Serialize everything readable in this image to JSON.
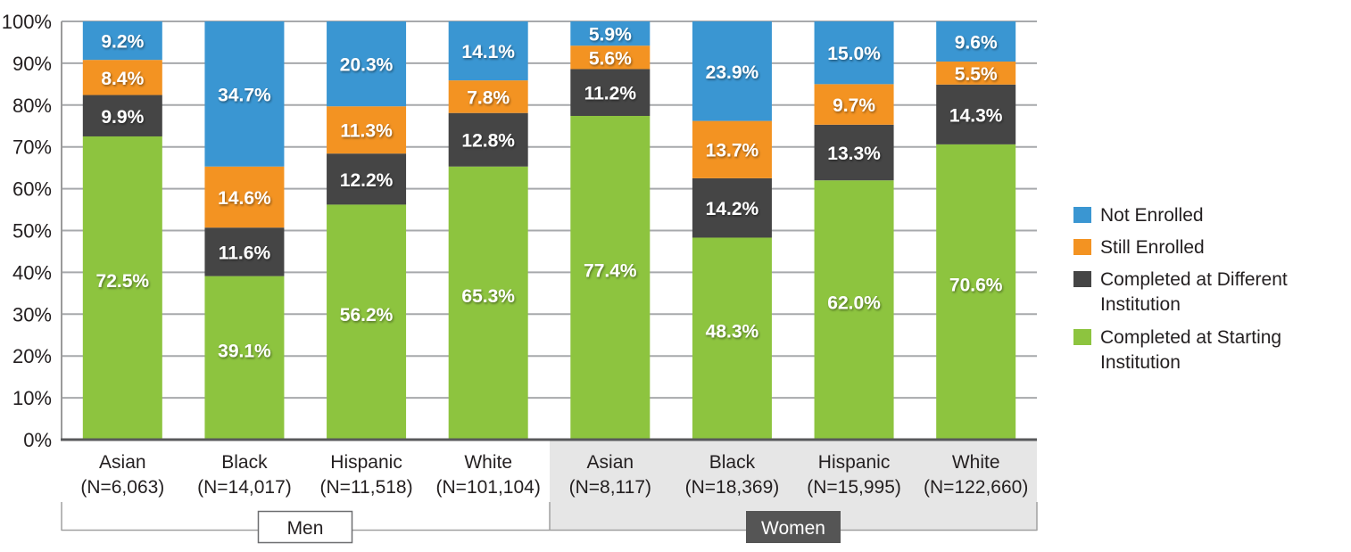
{
  "chart_data": {
    "type": "bar",
    "stacked": true,
    "title": "",
    "xlabel": "",
    "ylabel": "",
    "ylim": [
      0,
      100
    ],
    "y_ticks": [
      "0%",
      "10%",
      "20%",
      "30%",
      "40%",
      "50%",
      "60%",
      "70%",
      "80%",
      "90%",
      "100%"
    ],
    "grid": true,
    "legend_position": "right",
    "categories": [
      {
        "name": "Asian",
        "n": "(N=6,063)",
        "group": "Men"
      },
      {
        "name": "Black",
        "n": "(N=14,017)",
        "group": "Men"
      },
      {
        "name": "Hispanic",
        "n": "(N=11,518)",
        "group": "Men"
      },
      {
        "name": "White",
        "n": "(N=101,104)",
        "group": "Men"
      },
      {
        "name": "Asian",
        "n": "(N=8,117)",
        "group": "Women"
      },
      {
        "name": "Black",
        "n": "(N=18,369)",
        "group": "Women"
      },
      {
        "name": "Hispanic",
        "n": "(N=15,995)",
        "group": "Women"
      },
      {
        "name": "White",
        "n": "(N=122,660)",
        "group": "Women"
      }
    ],
    "groups": [
      "Men",
      "Women"
    ],
    "series": [
      {
        "name": "Completed at Starting Institution",
        "legend_lines": [
          "Completed at Starting",
          "Institution"
        ],
        "color": "#8dc43f",
        "values": [
          72.5,
          39.1,
          56.2,
          65.3,
          77.4,
          48.3,
          62.0,
          70.6
        ],
        "labels": [
          "72.5%",
          "39.1%",
          "56.2%",
          "65.3%",
          "77.4%",
          "48.3%",
          "62.0%",
          "70.6%"
        ]
      },
      {
        "name": "Completed at Different Institution",
        "legend_lines": [
          "Completed at Different",
          "Institution"
        ],
        "color": "#454545",
        "values": [
          9.9,
          11.6,
          12.2,
          12.8,
          11.2,
          14.2,
          13.3,
          14.3
        ],
        "labels": [
          "9.9%",
          "11.6%",
          "12.2%",
          "12.8%",
          "11.2%",
          "14.2%",
          "13.3%",
          "14.3%"
        ]
      },
      {
        "name": "Still Enrolled",
        "legend_lines": [
          "Still Enrolled"
        ],
        "color": "#f39322",
        "values": [
          8.4,
          14.6,
          11.3,
          7.8,
          5.6,
          13.7,
          9.7,
          5.5
        ],
        "labels": [
          "8.4%",
          "14.6%",
          "11.3%",
          "7.8%",
          "5.6%",
          "13.7%",
          "9.7%",
          "5.5%"
        ]
      },
      {
        "name": "Not Enrolled",
        "legend_lines": [
          "Not Enrolled"
        ],
        "color": "#3a96d2",
        "values": [
          9.2,
          34.7,
          20.3,
          14.1,
          5.9,
          23.9,
          15.0,
          9.6
        ],
        "labels": [
          "9.2%",
          "34.7%",
          "20.3%",
          "14.1%",
          "5.9%",
          "23.9%",
          "15.0%",
          "9.6%"
        ]
      }
    ],
    "legend_order": [
      3,
      2,
      1,
      0
    ]
  }
}
